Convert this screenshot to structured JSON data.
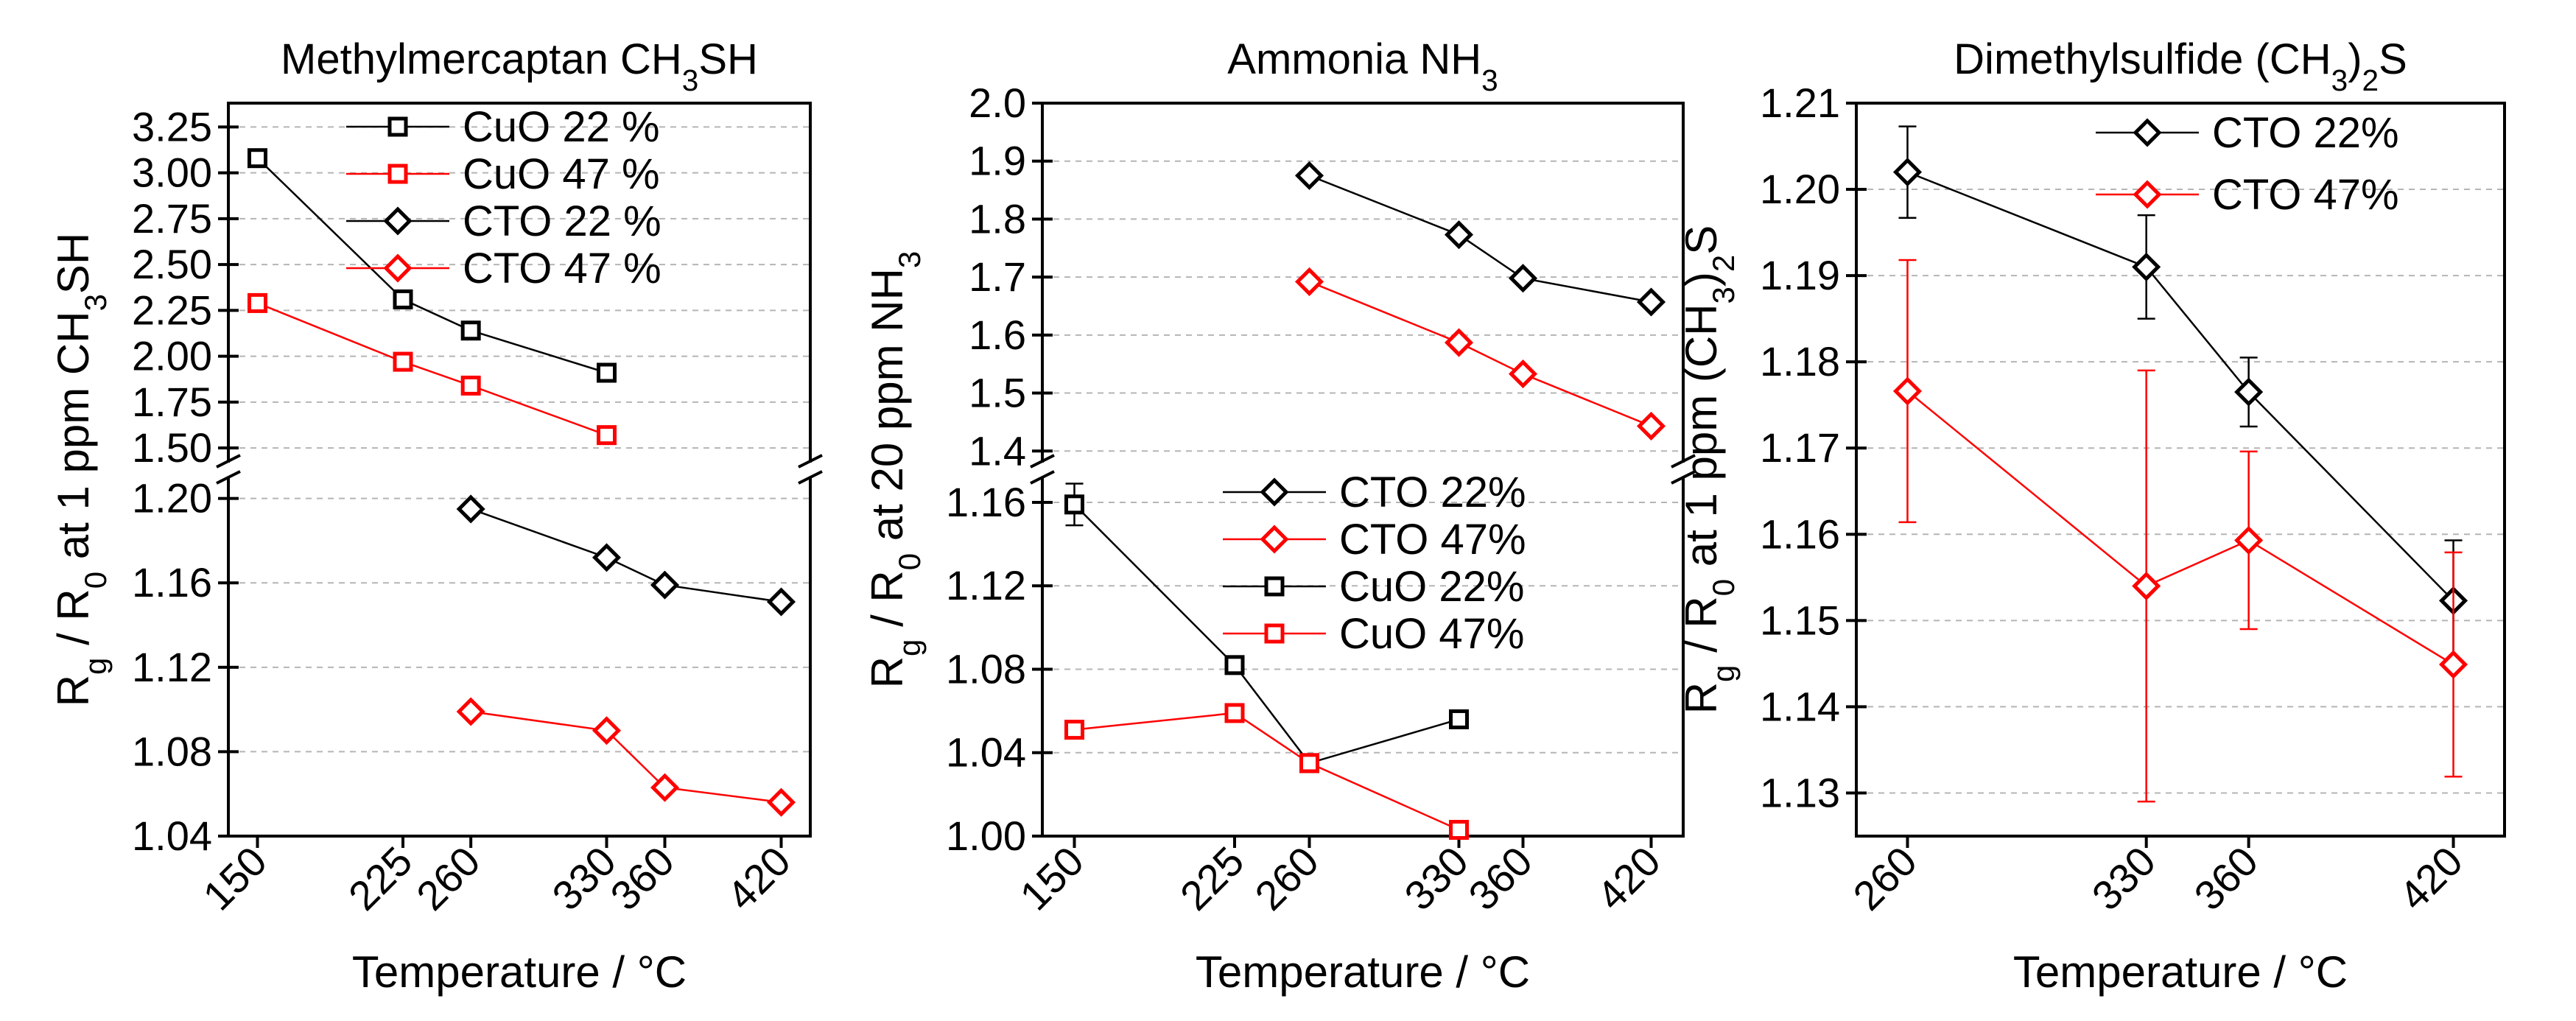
{
  "figure": {
    "description_hidden": false
  },
  "chart_data": [
    {
      "type": "line",
      "title_parts": [
        {
          "t": "Methylmercaptan CH"
        },
        {
          "t": "3",
          "s": "sub"
        },
        {
          "t": "SH"
        }
      ],
      "xlabel": "Temperature / °C",
      "ylabel_parts": [
        {
          "t": "R"
        },
        {
          "t": "g",
          "s": "sub"
        },
        {
          "t": " / R"
        },
        {
          "t": "0",
          "s": "sub"
        },
        {
          "t": " at 1 ppm CH"
        },
        {
          "t": "3",
          "s": "sub"
        },
        {
          "t": "SH"
        }
      ],
      "xlim": [
        135,
        435
      ],
      "x_ticks": [
        150,
        225,
        260,
        330,
        360,
        420
      ],
      "broken_axis": true,
      "upper_ylim": [
        1.42,
        3.38
      ],
      "upper_ticks": [
        1.5,
        1.75,
        2.0,
        2.25,
        2.5,
        2.75,
        3.0,
        3.25
      ],
      "upper_tick_labels": [
        "1.50",
        "1.75",
        "2.00",
        "2.25",
        "2.50",
        "2.75",
        "3.00",
        "3.25"
      ],
      "lower_ylim": [
        1.04,
        1.21
      ],
      "lower_ticks": [
        1.04,
        1.08,
        1.12,
        1.16,
        1.2
      ],
      "lower_tick_labels": [
        "1.04",
        "1.08",
        "1.12",
        "1.16",
        "1.20"
      ],
      "legend_location": "top-right-upper-panel",
      "series": [
        {
          "name": "CuO 22 %",
          "color": "#000000",
          "marker": "square",
          "panel": "upper",
          "x": [
            150,
            225,
            260,
            330
          ],
          "values": [
            3.08,
            2.31,
            2.14,
            1.91
          ],
          "err": [
            0.04,
            0.02,
            0.02,
            0.02
          ]
        },
        {
          "name": "CuO 47 %",
          "color": "#ff0000",
          "marker": "square",
          "panel": "upper",
          "x": [
            150,
            225,
            260,
            330
          ],
          "values": [
            2.29,
            1.97,
            1.84,
            1.57
          ],
          "err": [
            0.02,
            0.02,
            0.02,
            0.02
          ]
        },
        {
          "name": "CTO 22 %",
          "color": "#000000",
          "marker": "diamond",
          "panel": "lower",
          "x": [
            260,
            330,
            360,
            420
          ],
          "values": [
            1.195,
            1.172,
            1.159,
            1.151
          ],
          "err": [
            0.002,
            0.002,
            0.002,
            0.002
          ]
        },
        {
          "name": "CTO 47 %",
          "color": "#ff0000",
          "marker": "diamond",
          "panel": "lower",
          "x": [
            260,
            330,
            360,
            420
          ],
          "values": [
            1.099,
            1.09,
            1.063,
            1.056
          ],
          "err": [
            0,
            0,
            0,
            0
          ]
        }
      ]
    },
    {
      "type": "line",
      "title_parts": [
        {
          "t": "Ammonia NH"
        },
        {
          "t": "3",
          "s": "sub"
        }
      ],
      "xlabel": "Temperature / °C",
      "ylabel_parts": [
        {
          "t": "R"
        },
        {
          "t": "g",
          "s": "sub"
        },
        {
          "t": " / R"
        },
        {
          "t": "0",
          "s": "sub"
        },
        {
          "t": " at 20 ppm NH"
        },
        {
          "t": "3",
          "s": "sub"
        }
      ],
      "xlim": [
        135,
        435
      ],
      "x_ticks": [
        150,
        225,
        260,
        330,
        360,
        420
      ],
      "broken_axis": true,
      "upper_ylim": [
        1.38,
        2.0
      ],
      "upper_ticks": [
        1.4,
        1.5,
        1.6,
        1.7,
        1.8,
        1.9,
        2.0
      ],
      "upper_tick_labels": [
        "1.4",
        "1.5",
        "1.6",
        "1.7",
        "1.8",
        "1.9",
        "2.0"
      ],
      "lower_ylim": [
        1.0,
        1.172
      ],
      "lower_ticks": [
        1.0,
        1.04,
        1.08,
        1.12,
        1.16
      ],
      "lower_tick_labels": [
        "1.00",
        "1.04",
        "1.08",
        "1.12",
        "1.16"
      ],
      "legend_location": "top-right-lower-panel",
      "series": [
        {
          "name": "CTO 22%",
          "color": "#000000",
          "marker": "diamond",
          "panel": "upper",
          "x": [
            260,
            330,
            360,
            420
          ],
          "values": [
            1.875,
            1.773,
            1.698,
            1.657
          ],
          "err": [
            0,
            0,
            0,
            0
          ]
        },
        {
          "name": "CTO 47%",
          "color": "#ff0000",
          "marker": "diamond",
          "panel": "upper",
          "x": [
            260,
            330,
            360,
            420
          ],
          "values": [
            1.692,
            1.587,
            1.533,
            1.443
          ],
          "err": [
            0,
            0,
            0,
            0
          ]
        },
        {
          "name": "CuO 22%",
          "color": "#000000",
          "marker": "square",
          "panel": "lower",
          "x": [
            150,
            225,
            260,
            330
          ],
          "values": [
            1.159,
            1.082,
            1.035,
            1.056
          ],
          "err": [
            0.01,
            0.002,
            0.002,
            0.002
          ]
        },
        {
          "name": "CuO 47%",
          "color": "#ff0000",
          "marker": "square",
          "panel": "lower",
          "x": [
            150,
            225,
            260,
            330
          ],
          "values": [
            1.051,
            1.059,
            1.035,
            1.003
          ],
          "err": [
            0.002,
            0.002,
            0.002,
            0.002
          ]
        }
      ]
    },
    {
      "type": "line",
      "title_parts": [
        {
          "t": "Dimethylsulfide (CH"
        },
        {
          "t": "3",
          "s": "sub"
        },
        {
          "t": ")"
        },
        {
          "t": "2",
          "s": "sub"
        },
        {
          "t": "S"
        }
      ],
      "xlabel": "Temperature / °C",
      "ylabel_parts": [
        {
          "t": "R"
        },
        {
          "t": "g",
          "s": "sub"
        },
        {
          "t": " / R"
        },
        {
          "t": "0",
          "s": "sub"
        },
        {
          "t": " at 1 ppm (CH"
        },
        {
          "t": "3",
          "s": "sub"
        },
        {
          "t": ")"
        },
        {
          "t": "2",
          "s": "sub"
        },
        {
          "t": "S"
        }
      ],
      "xlim": [
        245,
        435
      ],
      "x_ticks": [
        260,
        330,
        360,
        420
      ],
      "broken_axis": false,
      "ylim": [
        1.125,
        1.21
      ],
      "y_ticks": [
        1.13,
        1.14,
        1.15,
        1.16,
        1.17,
        1.18,
        1.19,
        1.2,
        1.21
      ],
      "y_tick_labels": [
        "1.13",
        "1.14",
        "1.15",
        "1.16",
        "1.17",
        "1.18",
        "1.19",
        "1.20",
        "1.21"
      ],
      "legend_location": "top-right",
      "series": [
        {
          "name": "CTO 22%",
          "color": "#000000",
          "marker": "diamond",
          "x": [
            260,
            330,
            360,
            420
          ],
          "values": [
            1.202,
            1.191,
            1.1765,
            1.1523
          ],
          "err": [
            0.0053,
            0.006,
            0.004,
            0.007
          ]
        },
        {
          "name": "CTO 47%",
          "color": "#ff0000",
          "marker": "diamond",
          "x": [
            260,
            330,
            360,
            420
          ],
          "values": [
            1.1766,
            1.154,
            1.1593,
            1.1449
          ],
          "err": [
            0.0152,
            0.025,
            0.0103,
            0.013
          ]
        }
      ]
    }
  ]
}
